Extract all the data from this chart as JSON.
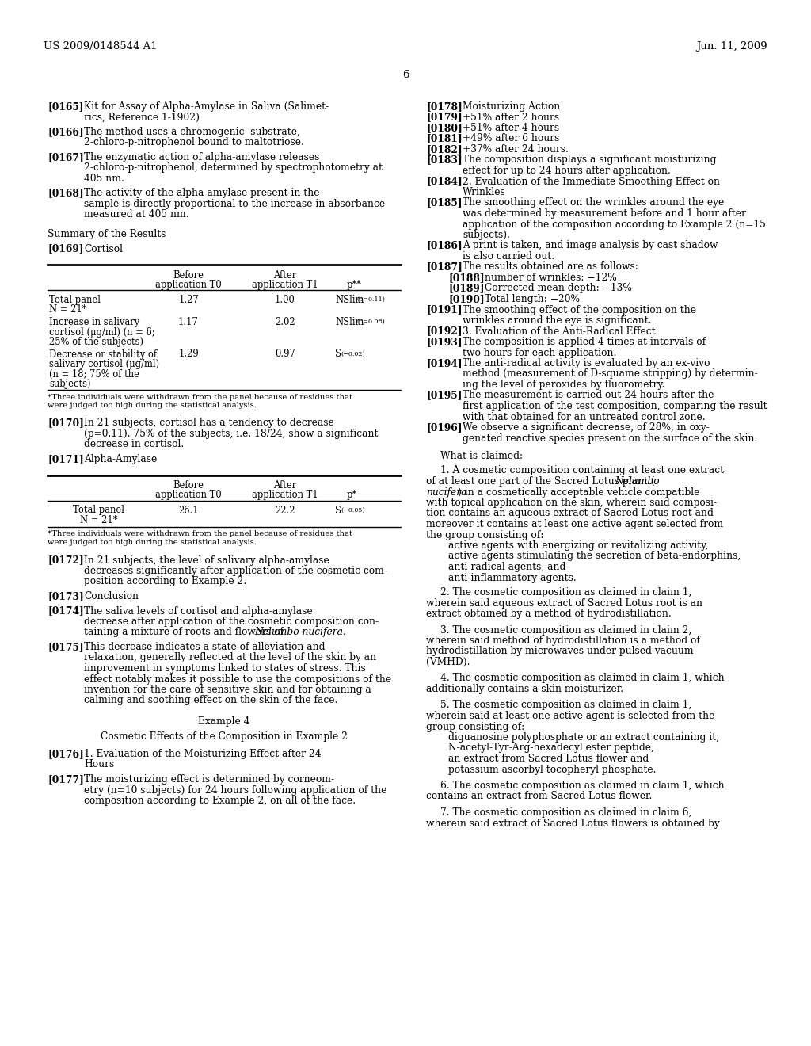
{
  "header_left": "US 2009/0148544 A1",
  "header_right": "Jun. 11, 2009",
  "page_number": "6",
  "background_color": "#ffffff",
  "text_color": "#000000",
  "figsize": [
    10.24,
    13.2
  ],
  "dpi": 100
}
